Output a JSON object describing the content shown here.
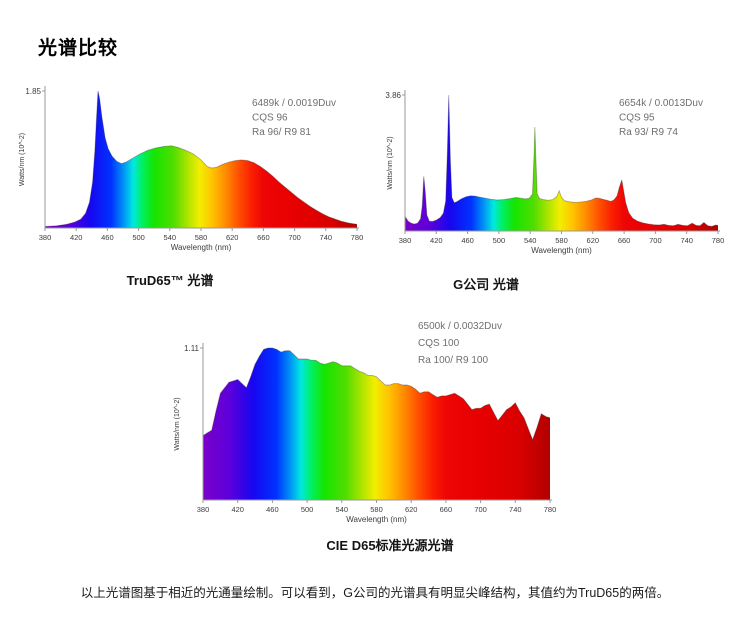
{
  "page": {
    "title": "光谱比较",
    "note": "以上光谱图基于相近的光通量绘制。可以看到，G公司的光谱具有明显尖峰结构，其值约为TruD65的两倍。"
  },
  "colors": {
    "annotation_text": "#6f6f6f",
    "axis_line": "#9a9a9a",
    "tick_text": "#3c3c3c",
    "curve_outline": "rgba(45,45,45,0.35)"
  },
  "spectrum_gradient": [
    [
      380,
      "#7B00C9"
    ],
    [
      412,
      "#5A00DC"
    ],
    [
      438,
      "#1706F0"
    ],
    [
      465,
      "#0033FF"
    ],
    [
      481,
      "#0095F5"
    ],
    [
      493,
      "#00E8E0"
    ],
    [
      505,
      "#00F060"
    ],
    [
      520,
      "#16E400"
    ],
    [
      545,
      "#52DD00"
    ],
    [
      562,
      "#A8E400"
    ],
    [
      578,
      "#F2EE00"
    ],
    [
      594,
      "#FFC400"
    ],
    [
      610,
      "#FF9000"
    ],
    [
      628,
      "#FF5000"
    ],
    [
      645,
      "#FA1E00"
    ],
    [
      660,
      "#EE0505"
    ],
    [
      700,
      "#E60000"
    ],
    [
      745,
      "#D90000"
    ],
    [
      780,
      "#B20000"
    ]
  ],
  "chart_data": [
    {
      "type": "area",
      "title": "TruD65™ 光谱",
      "annotation": [
        "6489k / 0.0019Duv",
        "CQS 96",
        "Ra 96/ R9 81"
      ],
      "xlabel": "Wavelength (nm)",
      "ylabel": "Watts/nm (10^-2)",
      "xlim": [
        380,
        780
      ],
      "ylim": [
        0,
        1.85
      ],
      "y_top_label": "1.85",
      "x_ticks": [
        380,
        420,
        460,
        500,
        540,
        580,
        620,
        660,
        700,
        740,
        780
      ],
      "grid": false,
      "points": [
        [
          380,
          0.02
        ],
        [
          395,
          0.03
        ],
        [
          408,
          0.05
        ],
        [
          418,
          0.08
        ],
        [
          426,
          0.12
        ],
        [
          432,
          0.2
        ],
        [
          437,
          0.35
        ],
        [
          441,
          0.62
        ],
        [
          444,
          1.05
        ],
        [
          446,
          1.48
        ],
        [
          448,
          1.85
        ],
        [
          450,
          1.75
        ],
        [
          453,
          1.5
        ],
        [
          457,
          1.22
        ],
        [
          461,
          1.07
        ],
        [
          466,
          0.97
        ],
        [
          472,
          0.9
        ],
        [
          478,
          0.87
        ],
        [
          484,
          0.89
        ],
        [
          492,
          0.94
        ],
        [
          502,
          1.0
        ],
        [
          512,
          1.05
        ],
        [
          522,
          1.08
        ],
        [
          532,
          1.1
        ],
        [
          542,
          1.11
        ],
        [
          550,
          1.09
        ],
        [
          560,
          1.05
        ],
        [
          570,
          1.0
        ],
        [
          580,
          0.92
        ],
        [
          588,
          0.83
        ],
        [
          594,
          0.81
        ],
        [
          600,
          0.82
        ],
        [
          608,
          0.86
        ],
        [
          616,
          0.89
        ],
        [
          624,
          0.91
        ],
        [
          632,
          0.92
        ],
        [
          640,
          0.91
        ],
        [
          648,
          0.88
        ],
        [
          656,
          0.83
        ],
        [
          664,
          0.77
        ],
        [
          672,
          0.7
        ],
        [
          680,
          0.62
        ],
        [
          688,
          0.55
        ],
        [
          696,
          0.48
        ],
        [
          704,
          0.41
        ],
        [
          712,
          0.35
        ],
        [
          720,
          0.29
        ],
        [
          728,
          0.24
        ],
        [
          736,
          0.19
        ],
        [
          744,
          0.15
        ],
        [
          752,
          0.12
        ],
        [
          760,
          0.09
        ],
        [
          768,
          0.07
        ],
        [
          774,
          0.06
        ],
        [
          780,
          0.05
        ]
      ]
    },
    {
      "type": "area",
      "title": "G公司 光谱",
      "annotation": [
        "6654k / 0.0013Duv",
        "CQS 95",
        "Ra 93/ R9 74"
      ],
      "xlabel": "Wavelength (nm)",
      "ylabel": "Watts/nm (10^-2)",
      "xlim": [
        380,
        780
      ],
      "ylim": [
        0,
        3.86
      ],
      "y_top_label": "3.86",
      "x_ticks": [
        380,
        420,
        460,
        500,
        540,
        580,
        620,
        660,
        700,
        740,
        780
      ],
      "grid": false,
      "points": [
        [
          380,
          0.42
        ],
        [
          384,
          0.28
        ],
        [
          388,
          0.22
        ],
        [
          392,
          0.2
        ],
        [
          396,
          0.22
        ],
        [
          400,
          0.35
        ],
        [
          402,
          0.7
        ],
        [
          404,
          1.55
        ],
        [
          406,
          1.1
        ],
        [
          408,
          0.45
        ],
        [
          411,
          0.28
        ],
        [
          415,
          0.27
        ],
        [
          420,
          0.31
        ],
        [
          425,
          0.38
        ],
        [
          429,
          0.5
        ],
        [
          432,
          0.85
        ],
        [
          434,
          2.2
        ],
        [
          436,
          3.86
        ],
        [
          438,
          2.0
        ],
        [
          440,
          0.95
        ],
        [
          443,
          0.8
        ],
        [
          447,
          0.84
        ],
        [
          452,
          0.91
        ],
        [
          458,
          0.97
        ],
        [
          464,
          1.0
        ],
        [
          470,
          0.99
        ],
        [
          476,
          0.96
        ],
        [
          483,
          0.93
        ],
        [
          490,
          0.9
        ],
        [
          498,
          0.88
        ],
        [
          506,
          0.89
        ],
        [
          514,
          0.92
        ],
        [
          522,
          0.95
        ],
        [
          528,
          0.93
        ],
        [
          534,
          0.91
        ],
        [
          539,
          0.93
        ],
        [
          543,
          1.05
        ],
        [
          545,
          2.2
        ],
        [
          546,
          2.95
        ],
        [
          547,
          2.2
        ],
        [
          549,
          1.05
        ],
        [
          552,
          0.92
        ],
        [
          557,
          0.89
        ],
        [
          563,
          0.87
        ],
        [
          569,
          0.89
        ],
        [
          574,
          0.98
        ],
        [
          577,
          1.14
        ],
        [
          580,
          0.95
        ],
        [
          584,
          0.86
        ],
        [
          590,
          0.83
        ],
        [
          597,
          0.81
        ],
        [
          604,
          0.82
        ],
        [
          611,
          0.84
        ],
        [
          618,
          0.88
        ],
        [
          624,
          0.94
        ],
        [
          628,
          0.93
        ],
        [
          633,
          0.9
        ],
        [
          638,
          0.87
        ],
        [
          643,
          0.84
        ],
        [
          647,
          0.88
        ],
        [
          651,
          1.0
        ],
        [
          654,
          1.25
        ],
        [
          657,
          1.45
        ],
        [
          659,
          1.2
        ],
        [
          662,
          0.8
        ],
        [
          666,
          0.52
        ],
        [
          671,
          0.36
        ],
        [
          677,
          0.28
        ],
        [
          684,
          0.23
        ],
        [
          691,
          0.2
        ],
        [
          698,
          0.18
        ],
        [
          705,
          0.17
        ],
        [
          711,
          0.19
        ],
        [
          717,
          0.16
        ],
        [
          723,
          0.15
        ],
        [
          729,
          0.19
        ],
        [
          735,
          0.16
        ],
        [
          741,
          0.15
        ],
        [
          747,
          0.22
        ],
        [
          752,
          0.16
        ],
        [
          757,
          0.15
        ],
        [
          762,
          0.24
        ],
        [
          767,
          0.15
        ],
        [
          772,
          0.13
        ],
        [
          777,
          0.17
        ],
        [
          780,
          0.16
        ]
      ]
    },
    {
      "type": "area",
      "title": "CIE D65标准光源光谱",
      "annotation": [
        "6500k / 0.0032Duv",
        "CQS 100",
        "Ra 100/ R9 100"
      ],
      "xlabel": "Wavelength (nm)",
      "ylabel": "Watts/nm (10^-2)",
      "xlim": [
        380,
        780
      ],
      "ylim": [
        0,
        1.11
      ],
      "y_top_label": "1.11",
      "x_ticks": [
        380,
        420,
        460,
        500,
        540,
        580,
        620,
        660,
        700,
        740,
        780
      ],
      "grid": false,
      "points": [
        [
          380,
          0.47
        ],
        [
          385,
          0.49
        ],
        [
          390,
          0.51
        ],
        [
          395,
          0.65
        ],
        [
          400,
          0.78
        ],
        [
          405,
          0.82
        ],
        [
          410,
          0.86
        ],
        [
          415,
          0.87
        ],
        [
          420,
          0.88
        ],
        [
          425,
          0.85
        ],
        [
          430,
          0.82
        ],
        [
          435,
          0.9
        ],
        [
          440,
          0.99
        ],
        [
          445,
          1.05
        ],
        [
          450,
          1.1
        ],
        [
          455,
          1.11
        ],
        [
          460,
          1.11
        ],
        [
          465,
          1.1
        ],
        [
          470,
          1.08
        ],
        [
          475,
          1.09
        ],
        [
          480,
          1.09
        ],
        [
          485,
          1.06
        ],
        [
          490,
          1.03
        ],
        [
          495,
          1.03
        ],
        [
          500,
          1.03
        ],
        [
          505,
          1.02
        ],
        [
          510,
          1.02
        ],
        [
          515,
          1.0
        ],
        [
          520,
          0.99
        ],
        [
          525,
          1.0
        ],
        [
          530,
          1.01
        ],
        [
          535,
          1.0
        ],
        [
          540,
          0.98
        ],
        [
          545,
          0.98
        ],
        [
          550,
          0.98
        ],
        [
          555,
          0.96
        ],
        [
          560,
          0.94
        ],
        [
          565,
          0.93
        ],
        [
          570,
          0.91
        ],
        [
          575,
          0.91
        ],
        [
          580,
          0.9
        ],
        [
          585,
          0.87
        ],
        [
          590,
          0.84
        ],
        [
          595,
          0.84
        ],
        [
          600,
          0.85
        ],
        [
          605,
          0.85
        ],
        [
          610,
          0.84
        ],
        [
          615,
          0.84
        ],
        [
          620,
          0.83
        ],
        [
          625,
          0.81
        ],
        [
          630,
          0.78
        ],
        [
          635,
          0.79
        ],
        [
          640,
          0.79
        ],
        [
          645,
          0.77
        ],
        [
          650,
          0.75
        ],
        [
          655,
          0.76
        ],
        [
          660,
          0.76
        ],
        [
          665,
          0.77
        ],
        [
          670,
          0.78
        ],
        [
          675,
          0.76
        ],
        [
          680,
          0.74
        ],
        [
          685,
          0.7
        ],
        [
          690,
          0.66
        ],
        [
          695,
          0.67
        ],
        [
          700,
          0.67
        ],
        [
          705,
          0.69
        ],
        [
          710,
          0.7
        ],
        [
          715,
          0.64
        ],
        [
          720,
          0.58
        ],
        [
          725,
          0.62
        ],
        [
          730,
          0.66
        ],
        [
          735,
          0.68
        ],
        [
          740,
          0.71
        ],
        [
          745,
          0.65
        ],
        [
          750,
          0.6
        ],
        [
          755,
          0.52
        ],
        [
          760,
          0.44
        ],
        [
          765,
          0.53
        ],
        [
          770,
          0.63
        ],
        [
          775,
          0.61
        ],
        [
          780,
          0.6
        ]
      ]
    }
  ]
}
